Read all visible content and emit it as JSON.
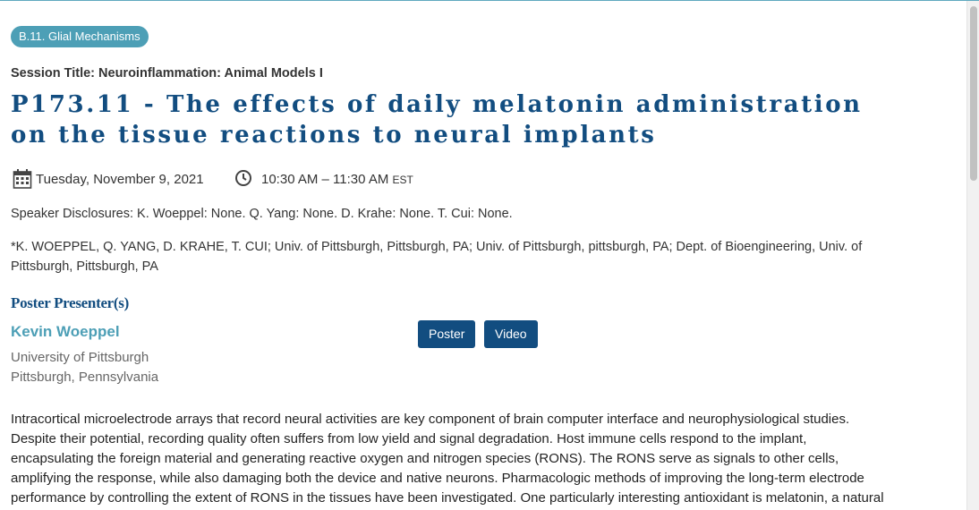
{
  "tag": "B.11. Glial Mechanisms",
  "session_title": "Session Title: Neuroinflammation: Animal Models I",
  "title_lines": [
    "P173.11 - The effects of daily melatonin administration",
    "on the tissue reactions to neural implants"
  ],
  "date": "Tuesday, November 9, 2021",
  "time": "10:30 AM – 11:30 AM",
  "timezone": "EST",
  "disclosures": "Speaker Disclosures: K. Woeppel: None. Q. Yang: None. D. Krahe: None. T. Cui: None.",
  "authors_lines": [
    "*K. WOEPPEL, Q. YANG, D. KRAHE, T. CUI; Univ. of Pittsburgh, Pittsburgh, PA; Univ. of Pittsburgh, pittsburgh, PA; Dept. of Bioengineering, Univ. of",
    "Pittsburgh, Pittsburgh, PA"
  ],
  "presenter_heading": "Poster Presenter(s)",
  "presenter": {
    "name": "Kevin Woeppel",
    "affiliation": "University of Pittsburgh",
    "location": "Pittsburgh, Pennsylvania"
  },
  "buttons": [
    "Poster",
    "Video"
  ],
  "abstract_lines": [
    "Intracortical microelectrode arrays that record neural activities are key component of brain computer interface and neurophysiological studies.",
    "Despite their potential, recording quality often suffers from low yield and signal degradation. Host immune cells respond to the implant,",
    "encapsulating the foreign material and generating reactive oxygen and nitrogen species (RONS). The RONS serve as signals to other cells,",
    "amplifying the response, while also damaging both the device and native neurons. Pharmacologic methods of improving the long-term electrode",
    "performance by controlling the extent of RONS in the tissues have been investigated. One particularly interesting antioxidant is melatonin, a natural"
  ]
}
